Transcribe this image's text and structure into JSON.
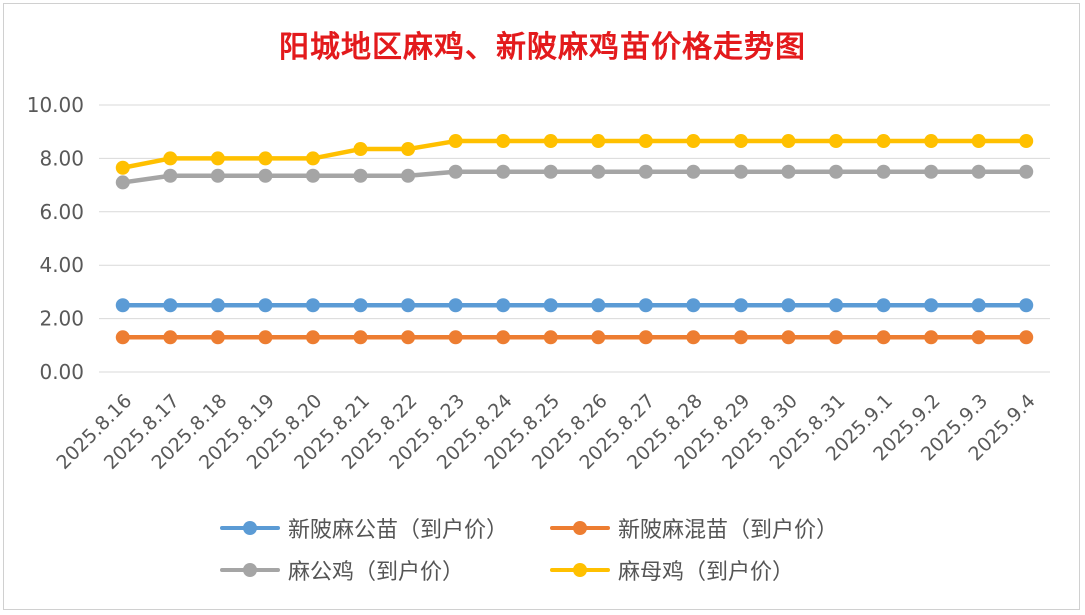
{
  "chart_data": {
    "type": "line",
    "title": "阳城地区麻鸡、新陂麻鸡苗价格走势图",
    "xlabel": "",
    "ylabel": "",
    "ylim": [
      0,
      10
    ],
    "yticks": [
      "0.00",
      "2.00",
      "4.00",
      "6.00",
      "8.00",
      "10.00"
    ],
    "grid": true,
    "legend_position": "bottom",
    "categories": [
      "2025.8.16",
      "2025.8.17",
      "2025.8.18",
      "2025.8.19",
      "2025.8.20",
      "2025.8.21",
      "2025.8.22",
      "2025.8.23",
      "2025.8.24",
      "2025.8.25",
      "2025.8.26",
      "2025.8.27",
      "2025.8.28",
      "2025.8.29",
      "2025.8.30",
      "2025.8.31",
      "2025.9.1",
      "2025.9.2",
      "2025.9.3",
      "2025.9.4"
    ],
    "series": [
      {
        "name": "新陂麻公苗（到户价）",
        "color": "#5b9bd5",
        "values": [
          2.5,
          2.5,
          2.5,
          2.5,
          2.5,
          2.5,
          2.5,
          2.5,
          2.5,
          2.5,
          2.5,
          2.5,
          2.5,
          2.5,
          2.5,
          2.5,
          2.5,
          2.5,
          2.5,
          2.5
        ]
      },
      {
        "name": "新陂麻混苗（到户价）",
        "color": "#ed7d31",
        "values": [
          1.3,
          1.3,
          1.3,
          1.3,
          1.3,
          1.3,
          1.3,
          1.3,
          1.3,
          1.3,
          1.3,
          1.3,
          1.3,
          1.3,
          1.3,
          1.3,
          1.3,
          1.3,
          1.3,
          1.3
        ]
      },
      {
        "name": "麻公鸡（到户价）",
        "color": "#a5a5a5",
        "values": [
          7.1,
          7.35,
          7.35,
          7.35,
          7.35,
          7.35,
          7.35,
          7.5,
          7.5,
          7.5,
          7.5,
          7.5,
          7.5,
          7.5,
          7.5,
          7.5,
          7.5,
          7.5,
          7.5,
          7.5
        ]
      },
      {
        "name": "麻母鸡（到户价）",
        "color": "#ffc000",
        "values": [
          7.65,
          8.0,
          8.0,
          8.0,
          8.0,
          8.35,
          8.35,
          8.65,
          8.65,
          8.65,
          8.65,
          8.65,
          8.65,
          8.65,
          8.65,
          8.65,
          8.65,
          8.65,
          8.65,
          8.65
        ]
      }
    ]
  }
}
